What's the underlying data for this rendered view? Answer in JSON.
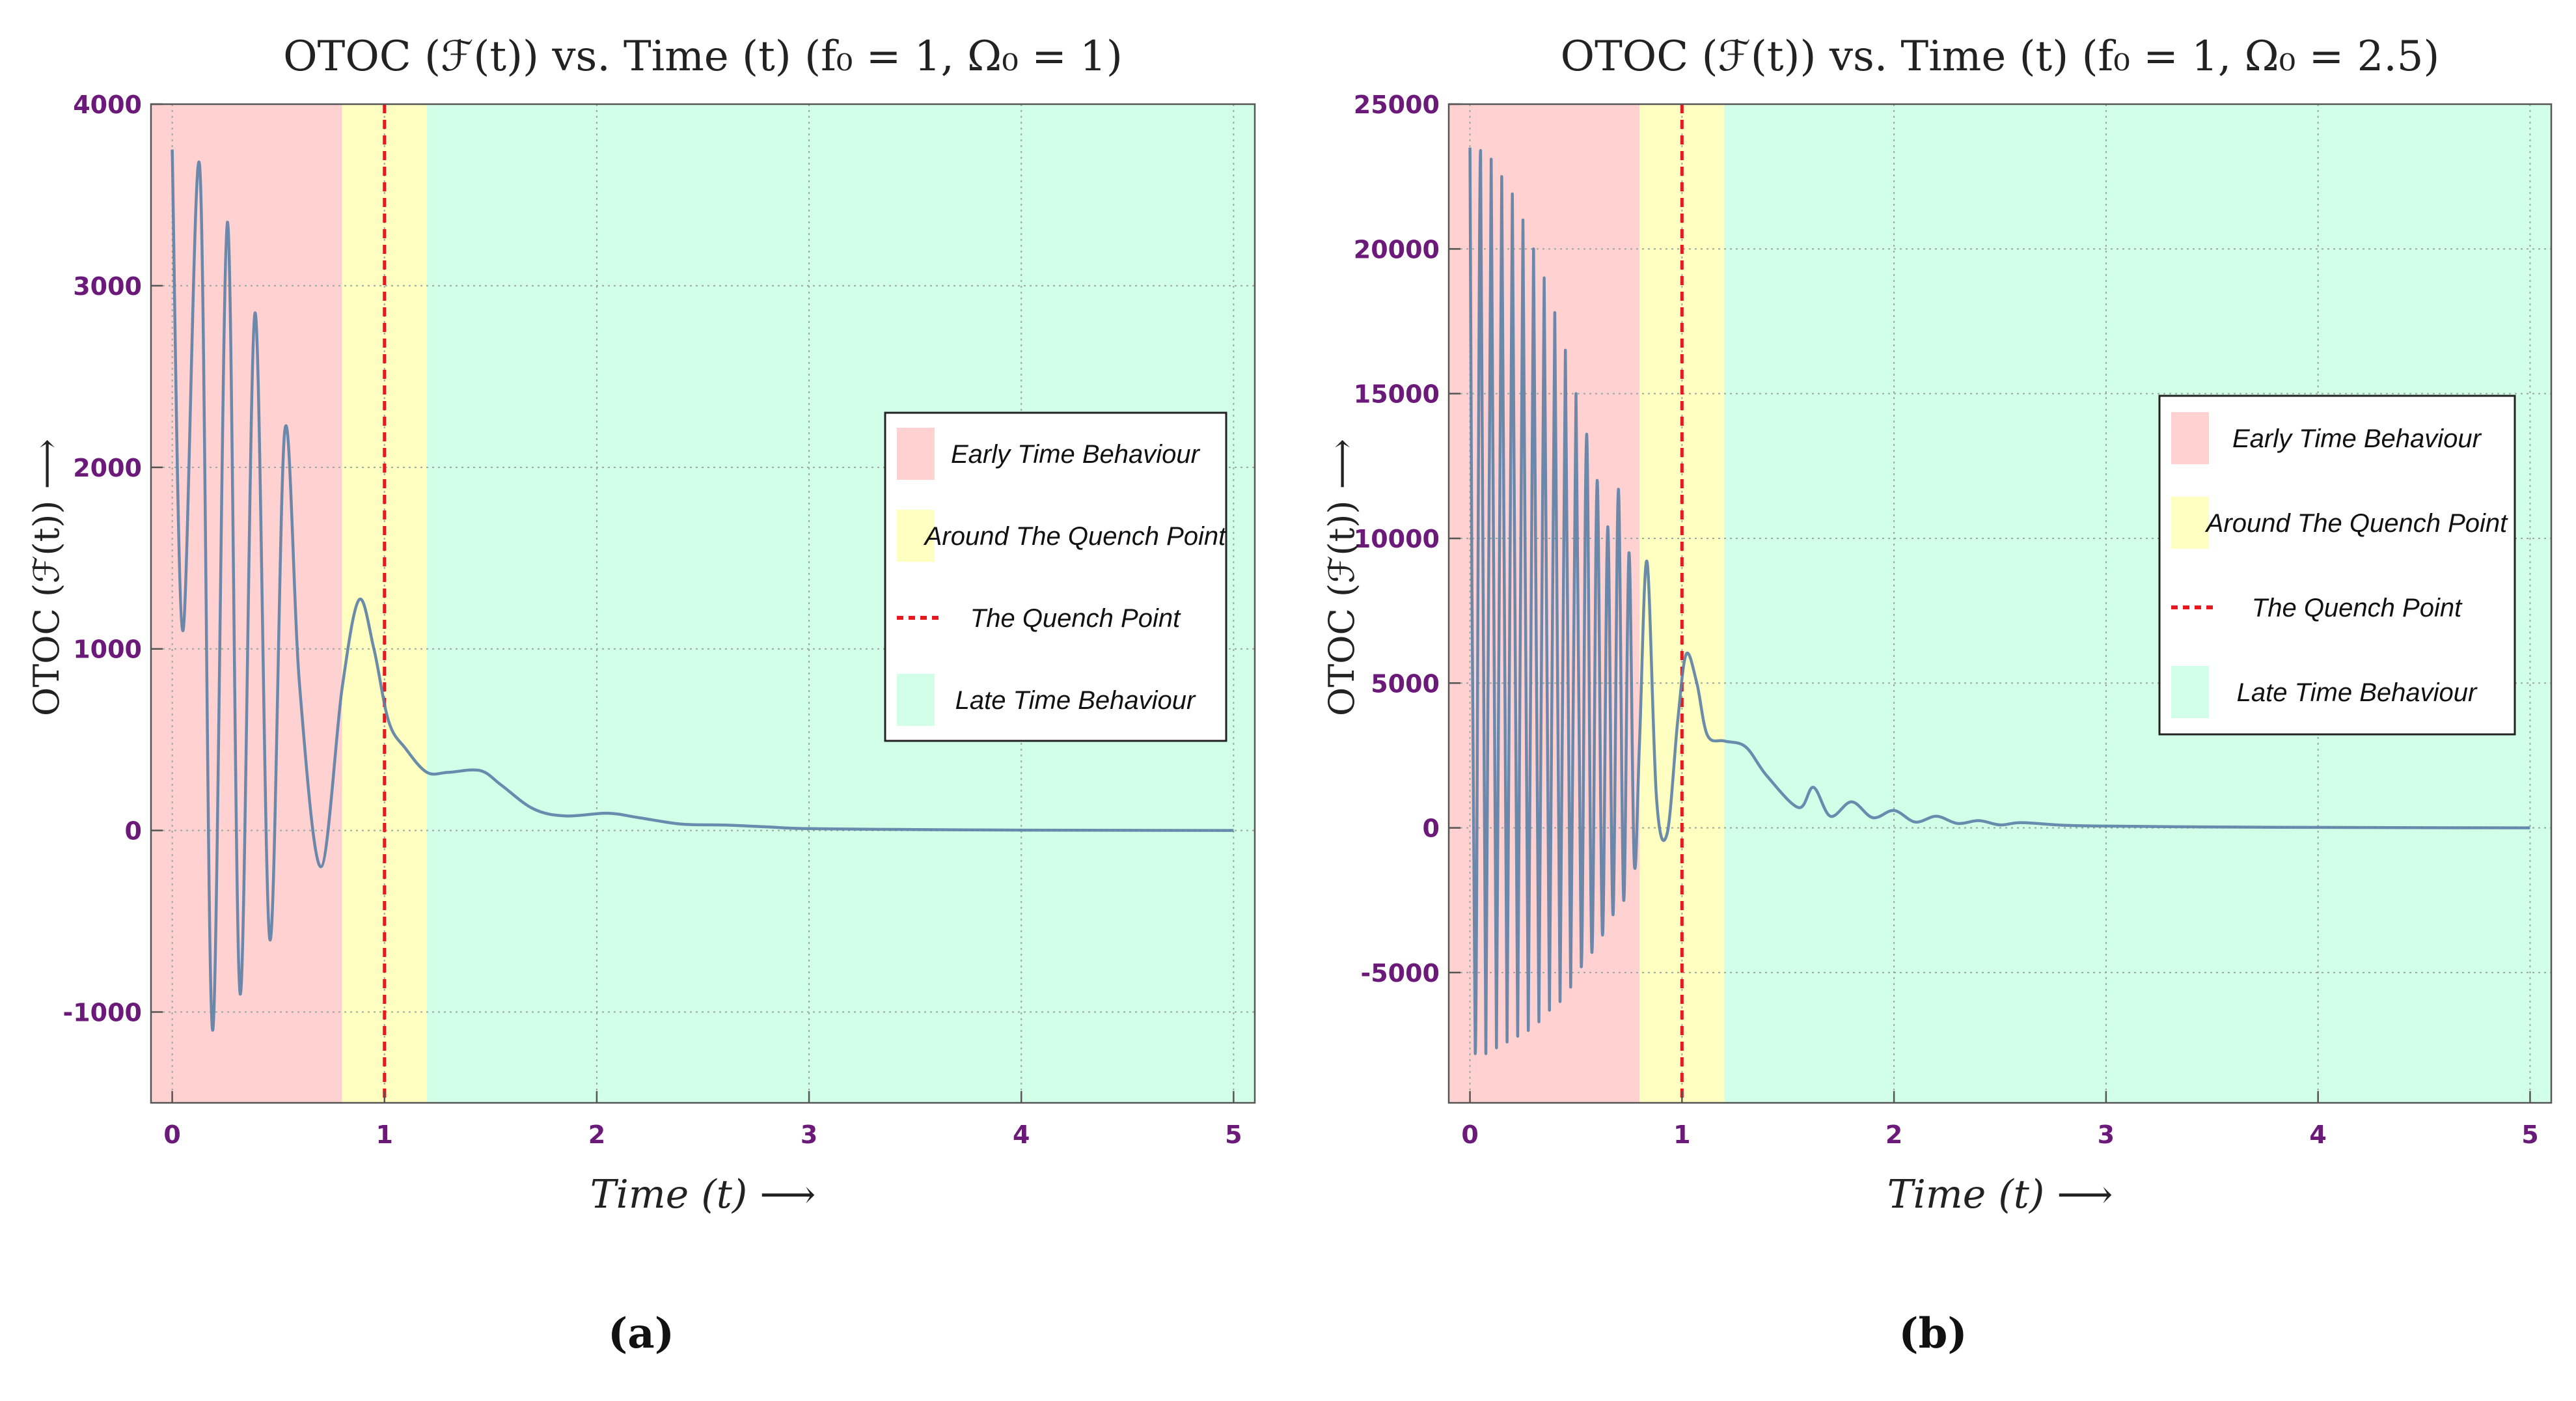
{
  "chart_data": [
    {
      "type": "line",
      "panel_label": "(a)",
      "title": "OTOC (ℱ(t)) vs. Time (t) (f₀ = 1, Ω₀ = 1)",
      "xlabel": "Time (t) ⟶",
      "ylabel": "OTOC (ℱ(t)) ⟶",
      "xlim": [
        -0.1,
        5.1
      ],
      "ylim": [
        -1500,
        4000
      ],
      "xticks": [
        "0",
        "1",
        "2",
        "3",
        "4",
        "5"
      ],
      "yticks": [
        "-1000",
        "0",
        "1000",
        "2000",
        "3000",
        "4000"
      ],
      "regions": [
        {
          "name": "Early Time Behaviour",
          "from": -0.1,
          "to": 0.8,
          "color": "#ffd1d1"
        },
        {
          "name": "Around The Quench Point",
          "from": 0.8,
          "to": 1.2,
          "color": "#ffffc2"
        },
        {
          "name": "Late Time Behaviour",
          "from": 1.2,
          "to": 5.1,
          "color": "#d2ffe8"
        }
      ],
      "quench_point": 1.0,
      "legend": [
        "Early Time Behaviour",
        "Around The Quench Point",
        "The Quench Point",
        "Late Time Behaviour"
      ],
      "series": [
        {
          "name": "OTOC",
          "x": [
            0.0,
            0.05,
            0.13,
            0.19,
            0.26,
            0.32,
            0.39,
            0.46,
            0.53,
            0.6,
            0.7,
            0.8,
            0.88,
            0.95,
            1.02,
            1.1,
            1.2,
            1.3,
            1.45,
            1.55,
            1.7,
            1.85,
            2.05,
            2.2,
            2.4,
            2.6,
            2.8,
            3.0,
            3.5,
            4.0,
            4.5,
            5.0
          ],
          "y": [
            3750,
            1100,
            3650,
            -1100,
            3350,
            -900,
            2850,
            -600,
            2200,
            800,
            -200,
            780,
            1270,
            1000,
            600,
            450,
            320,
            320,
            330,
            250,
            120,
            80,
            95,
            70,
            35,
            30,
            20,
            10,
            5,
            2,
            1,
            0
          ]
        }
      ]
    },
    {
      "type": "line",
      "panel_label": "(b)",
      "title": "OTOC (ℱ(t)) vs. Time (t) (f₀ = 1, Ω₀ = 2.5)",
      "xlabel": "Time (t) ⟶",
      "ylabel": "OTOC (ℱ(t)) ⟶",
      "xlim": [
        -0.1,
        5.1
      ],
      "ylim": [
        -9500,
        25000
      ],
      "xticks": [
        "0",
        "1",
        "2",
        "3",
        "4",
        "5"
      ],
      "yticks": [
        "-5000",
        "0",
        "5000",
        "10000",
        "15000",
        "20000",
        "25000"
      ],
      "regions": [
        {
          "name": "Early Time Behaviour",
          "from": -0.1,
          "to": 0.8,
          "color": "#ffd1d1"
        },
        {
          "name": "Around The Quench Point",
          "from": 0.8,
          "to": 1.2,
          "color": "#ffffc2"
        },
        {
          "name": "Late Time Behaviour",
          "from": 1.2,
          "to": 5.1,
          "color": "#d2ffe8"
        }
      ],
      "quench_point": 1.0,
      "legend": [
        "Early Time Behaviour",
        "Around The Quench Point",
        "The Quench Point",
        "Late Time Behaviour"
      ],
      "series": [
        {
          "name": "OTOC",
          "x": [
            0.0,
            0.025,
            0.05,
            0.075,
            0.1,
            0.125,
            0.15,
            0.175,
            0.2,
            0.225,
            0.25,
            0.275,
            0.3,
            0.325,
            0.35,
            0.375,
            0.4,
            0.425,
            0.45,
            0.475,
            0.5,
            0.525,
            0.55,
            0.575,
            0.6,
            0.625,
            0.65,
            0.675,
            0.7,
            0.725,
            0.75,
            0.775,
            0.8,
            0.835,
            0.88,
            0.93,
            0.98,
            1.02,
            1.07,
            1.12,
            1.2,
            1.3,
            1.4,
            1.55,
            1.62,
            1.7,
            1.8,
            1.9,
            2.0,
            2.1,
            2.2,
            2.3,
            2.4,
            2.5,
            2.6,
            2.8,
            3.0,
            3.5,
            4.0,
            4.5,
            5.0
          ],
          "y": [
            23500,
            -7800,
            23400,
            -7800,
            23100,
            -7600,
            22500,
            -7400,
            21900,
            -7200,
            21000,
            -7000,
            20000,
            -6700,
            19000,
            -6300,
            17800,
            -6000,
            16500,
            -5500,
            15000,
            -4800,
            13600,
            -4300,
            12000,
            -3700,
            10400,
            -3000,
            11700,
            -2500,
            9500,
            -1200,
            3000,
            9200,
            1000,
            -200,
            3700,
            6000,
            5000,
            3200,
            3000,
            2800,
            1800,
            700,
            1400,
            400,
            900,
            350,
            600,
            200,
            400,
            150,
            250,
            100,
            180,
            90,
            60,
            30,
            15,
            5,
            0
          ]
        }
      ]
    }
  ]
}
